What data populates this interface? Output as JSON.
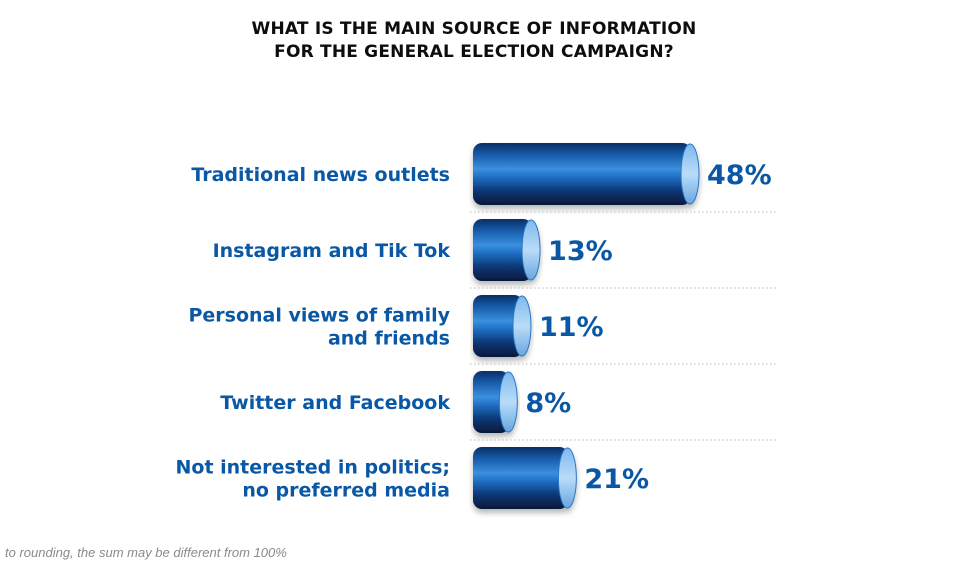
{
  "chart_data": {
    "type": "bar",
    "orientation": "horizontal",
    "title": [
      "WHAT IS THE MAIN SOURCE OF INFORMATION",
      "FOR THE GENERAL ELECTION CAMPAIGN?"
    ],
    "categories": [
      [
        "Traditional news outlets"
      ],
      [
        "Instagram and Tik Tok"
      ],
      [
        "Personal views of family",
        "and friends"
      ],
      [
        "Twitter and Facebook"
      ],
      [
        "Not interested in politics;",
        "no preferred media"
      ]
    ],
    "values": [
      48,
      13,
      11,
      8,
      21
    ],
    "value_labels": [
      "48%",
      "13%",
      "11%",
      "8%",
      "21%"
    ],
    "unit": "%",
    "xlim": [
      0,
      48
    ],
    "grid": false,
    "legend": "none"
  },
  "footnote": "to rounding, the sum may be different from 100%",
  "colors": {
    "title": "#0d0d0d",
    "label": "#0a58a5",
    "bar_dark": "#08234f",
    "bar_mid": "#1c6fc7",
    "bar_light": "#4aa3ee",
    "divider": "#b8b8b8",
    "footnote": "#8a8a8a"
  }
}
